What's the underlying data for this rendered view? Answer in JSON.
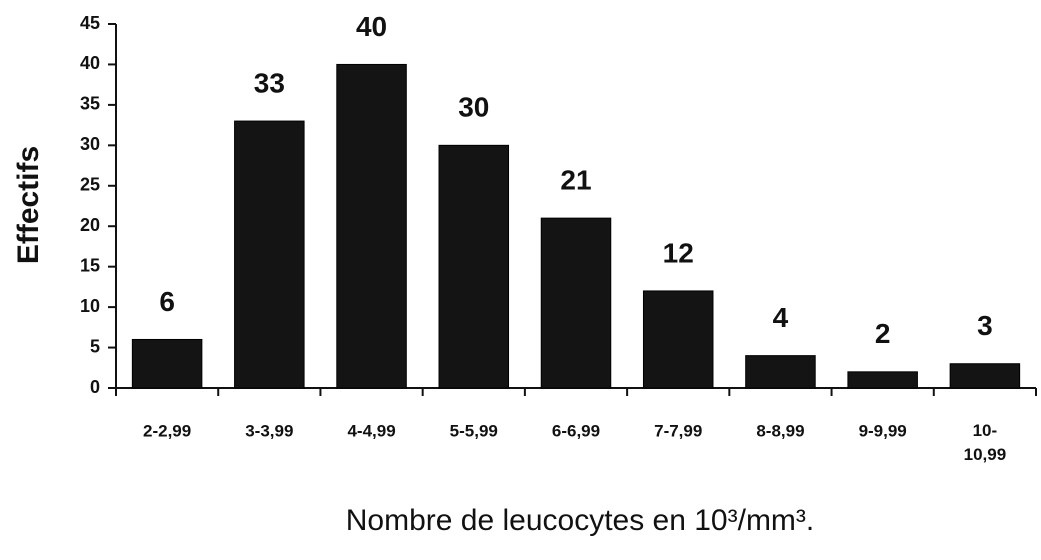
{
  "chart_data": {
    "type": "bar",
    "categories": [
      "2-2,99",
      "3-3,99",
      "4-4,99",
      "5-5,99",
      "6-6,99",
      "7-7,99",
      "8-8,99",
      "9-9,99",
      "10-\n10,99"
    ],
    "values": [
      6,
      33,
      40,
      30,
      21,
      12,
      4,
      2,
      3
    ],
    "color": "#141414",
    "ylim": [
      0,
      45
    ],
    "yticks": [
      0,
      5,
      10,
      15,
      20,
      25,
      30,
      35,
      40,
      45
    ],
    "y_label": "Effectifs",
    "x_label": "Nombre de leucocytes en 10³/mm³."
  }
}
